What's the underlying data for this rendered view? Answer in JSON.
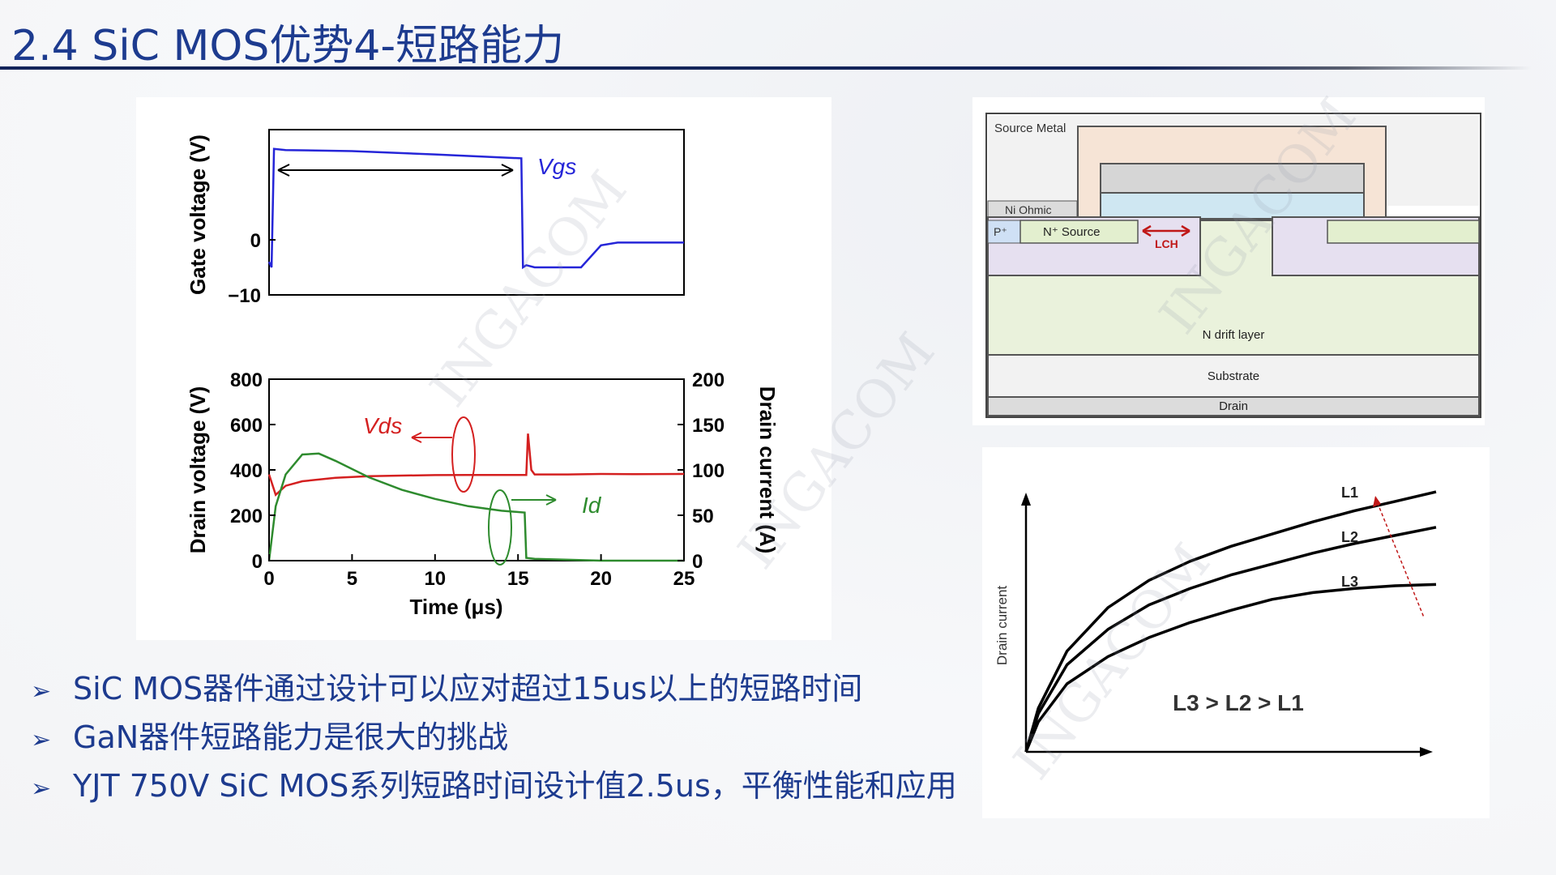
{
  "slide": {
    "title": "2.4 SiC MOS优势4-短路能力"
  },
  "bullets": [
    {
      "text": "SiC MOS器件通过设计可以应对超过15us以上的短路时间"
    },
    {
      "text": "GaN器件短路能力是很大的挑战"
    },
    {
      "text": "YJT 750V SiC MOS系列短路时间设计值2.5us，平衡性能和应用"
    }
  ],
  "watermark_text": "INGACOM",
  "colors": {
    "title": "#1d3b8f",
    "vgs": "#2525d8",
    "vds": "#d42020",
    "id": "#2e8b2e"
  },
  "chart_data": [
    {
      "type": "line",
      "title": "",
      "ylabel": "Gate voltage (V)",
      "ylim": [
        -10,
        20
      ],
      "xlim": [
        0,
        25
      ],
      "yticks": [
        "0",
        "−10"
      ],
      "series": [
        {
          "name": "Vgs",
          "x": [
            0,
            0.15,
            0.3,
            1,
            5,
            10,
            15.2,
            15.3,
            15.5,
            16,
            18.8,
            20,
            21,
            25
          ],
          "y": [
            -4,
            -5,
            16.5,
            16.3,
            16.1,
            15.5,
            14.8,
            -5,
            -4.6,
            -5,
            -5,
            -1,
            -0.5,
            -0.5
          ]
        }
      ],
      "annotation": "Vgs"
    },
    {
      "type": "line",
      "title": "",
      "xlabel": "Time (μs)",
      "ylabel": "Drain voltage (V)",
      "y2label": "Drain current (A)",
      "xlim": [
        0,
        25
      ],
      "ylim": [
        0,
        800
      ],
      "y2lim": [
        0,
        200
      ],
      "xticks": [
        "0",
        "5",
        "10",
        "15",
        "20",
        "25"
      ],
      "yticks": [
        "0",
        "200",
        "400",
        "600",
        "800"
      ],
      "y2ticks": [
        "0",
        "50",
        "100",
        "150",
        "200"
      ],
      "series": [
        {
          "name": "Vds",
          "axis": "left",
          "x": [
            0,
            0.4,
            1,
            2,
            4,
            6,
            8,
            10,
            12,
            14,
            15.5,
            15.6,
            15.8,
            16,
            18,
            20,
            22,
            25
          ],
          "y": [
            380,
            290,
            330,
            350,
            365,
            372,
            375,
            377,
            378,
            378,
            378,
            560,
            400,
            380,
            380,
            382,
            381,
            382
          ]
        },
        {
          "name": "Id",
          "axis": "right",
          "x": [
            0,
            0.4,
            1,
            2,
            3,
            4,
            6,
            8,
            10,
            12,
            14,
            15.4,
            15.5,
            16,
            18,
            20,
            25
          ],
          "y": [
            0,
            60,
            95,
            117,
            118,
            110,
            92,
            78,
            68,
            60,
            55,
            53,
            3,
            2,
            1,
            0,
            0
          ]
        }
      ],
      "annotations": [
        "Vds",
        "Id"
      ]
    },
    {
      "type": "line",
      "title": "",
      "ylabel": "Drain current",
      "xlim": [
        0,
        10
      ],
      "ylim": [
        0,
        10
      ],
      "series": [
        {
          "name": "L1",
          "x": [
            0,
            0.3,
            1,
            2,
            3,
            4,
            5,
            6,
            7,
            8,
            9,
            10
          ],
          "y": [
            0,
            1.6,
            3.7,
            5.3,
            6.3,
            7.0,
            7.55,
            8.0,
            8.45,
            8.85,
            9.2,
            9.55
          ]
        },
        {
          "name": "L2",
          "x": [
            0,
            0.3,
            1,
            2,
            3,
            4,
            5,
            6,
            7,
            8,
            9,
            10
          ],
          "y": [
            0,
            1.4,
            3.2,
            4.5,
            5.4,
            6.0,
            6.5,
            6.9,
            7.3,
            7.65,
            7.95,
            8.25
          ]
        },
        {
          "name": "L3",
          "x": [
            0,
            0.3,
            1,
            2,
            3,
            4,
            5,
            6,
            7,
            8,
            9,
            10
          ],
          "y": [
            0,
            1.1,
            2.5,
            3.5,
            4.2,
            4.75,
            5.2,
            5.6,
            5.85,
            6.0,
            6.1,
            6.15
          ]
        }
      ],
      "legend_labels": [
        "L1",
        "L2",
        "L3"
      ],
      "annotation": "L3 > L2 > L1"
    }
  ],
  "diagram": {
    "labels": {
      "source_metal": "Source Metal",
      "ni_ohmic": "Ni Ohmic",
      "p_plus": "P⁺",
      "n_source": "N⁺ Source",
      "lch": "LCH",
      "n_drift": "N drift layer",
      "substrate": "Substrate",
      "drain": "Drain"
    }
  }
}
